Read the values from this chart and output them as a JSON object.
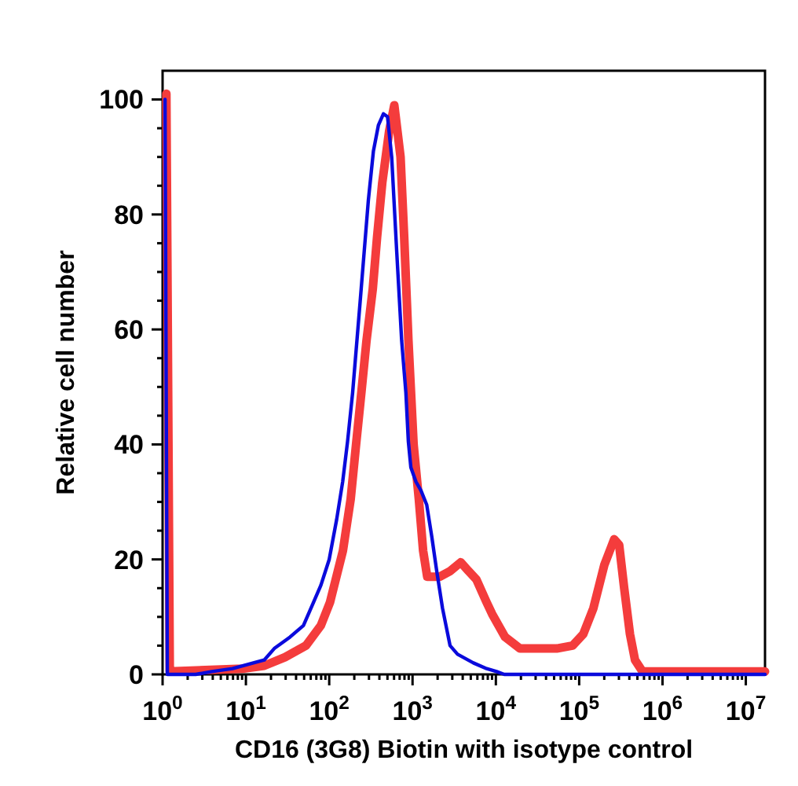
{
  "chart_data": {
    "type": "line",
    "xlabel": "CD16 (3G8) Biotin with isotype control",
    "ylabel": "Relative cell number",
    "log": "x",
    "xlim": [
      1,
      17000000
    ],
    "ylim": [
      0,
      105
    ],
    "xticks": [
      {
        "value": 1,
        "label": "10$^{0}$"
      },
      {
        "value": 2,
        "label": null
      },
      {
        "value": 3,
        "label": null
      },
      {
        "value": 4,
        "label": null
      },
      {
        "value": 5,
        "label": null
      },
      {
        "value": 6,
        "label": null
      },
      {
        "value": 7,
        "label": null
      },
      {
        "value": 8,
        "label": null
      },
      {
        "value": 9,
        "label": null
      },
      {
        "value": 10,
        "label": "10$^{1}$"
      },
      {
        "value": 20,
        "label": null
      },
      {
        "value": 30,
        "label": null
      },
      {
        "value": 40,
        "label": null
      },
      {
        "value": 50,
        "label": null
      },
      {
        "value": 60,
        "label": null
      },
      {
        "value": 70,
        "label": null
      },
      {
        "value": 80,
        "label": null
      },
      {
        "value": 90,
        "label": null
      },
      {
        "value": 100,
        "label": "10$^{2}$"
      },
      {
        "value": 200,
        "label": null
      },
      {
        "value": 300,
        "label": null
      },
      {
        "value": 400,
        "label": null
      },
      {
        "value": 500,
        "label": null
      },
      {
        "value": 600,
        "label": null
      },
      {
        "value": 700,
        "label": null
      },
      {
        "value": 800,
        "label": null
      },
      {
        "value": 900,
        "label": null
      },
      {
        "value": 1000,
        "label": "10$^{3}$"
      },
      {
        "value": 2000,
        "label": null
      },
      {
        "value": 3000,
        "label": null
      },
      {
        "value": 4000,
        "label": null
      },
      {
        "value": 5000,
        "label": null
      },
      {
        "value": 6000,
        "label": null
      },
      {
        "value": 7000,
        "label": null
      },
      {
        "value": 8000,
        "label": null
      },
      {
        "value": 9000,
        "label": null
      },
      {
        "value": 10000,
        "label": "10$^{4}$"
      },
      {
        "value": 20000,
        "label": null
      },
      {
        "value": 30000,
        "label": null
      },
      {
        "value": 40000,
        "label": null
      },
      {
        "value": 50000,
        "label": null
      },
      {
        "value": 60000,
        "label": null
      },
      {
        "value": 70000,
        "label": null
      },
      {
        "value": 80000,
        "label": null
      },
      {
        "value": 90000,
        "label": null
      },
      {
        "value": 100000,
        "label": "10$^{5}$"
      },
      {
        "value": 200000,
        "label": null
      },
      {
        "value": 300000,
        "label": null
      },
      {
        "value": 400000,
        "label": null
      },
      {
        "value": 500000,
        "label": null
      },
      {
        "value": 600000,
        "label": null
      },
      {
        "value": 700000,
        "label": null
      },
      {
        "value": 800000,
        "label": null
      },
      {
        "value": 900000,
        "label": null
      },
      {
        "value": 1000000,
        "label": "10$^{6}$"
      },
      {
        "value": 2000000,
        "label": null
      },
      {
        "value": 3000000,
        "label": null
      },
      {
        "value": 4000000,
        "label": null
      },
      {
        "value": 5000000,
        "label": null
      },
      {
        "value": 6000000,
        "label": null
      },
      {
        "value": 7000000,
        "label": null
      },
      {
        "value": 8000000,
        "label": null
      },
      {
        "value": 9000000,
        "label": null
      },
      {
        "value": 10000000,
        "label": "10$^{7}$"
      }
    ],
    "yticks": [
      0,
      {
        "value": 5,
        "label": null
      },
      {
        "value": 10,
        "label": null
      },
      {
        "value": 15,
        "label": null
      },
      20,
      {
        "value": 25,
        "label": null
      },
      {
        "value": 30,
        "label": null
      },
      {
        "value": 35,
        "label": null
      },
      40,
      {
        "value": 45,
        "label": null
      },
      {
        "value": 50,
        "label": null
      },
      {
        "value": 55,
        "label": null
      },
      60,
      {
        "value": 65,
        "label": null
      },
      {
        "value": 70,
        "label": null
      },
      {
        "value": 75,
        "label": null
      },
      80,
      {
        "value": 85,
        "label": null
      },
      {
        "value": 90,
        "label": null
      },
      {
        "value": 95,
        "label": null
      },
      100
    ],
    "series": [
      {
        "color": "#f43c3c",
        "x": [
          1.11,
          1.22,
          9.1,
          16.6,
          29.5,
          52.5,
          79.4,
          102,
          146,
          181,
          210,
          243,
          280,
          333,
          375,
          433,
          524,
          604,
          718,
          794,
          893,
          1030,
          1190,
          1340,
          1500,
          2130,
          2850,
          3790,
          4680,
          5840,
          7760,
          9020,
          12900,
          19500,
          30200,
          53700,
          83200,
          112000,
          148000,
          200000,
          263000,
          302000,
          347000,
          407000,
          468000,
          575000,
          17000000
        ],
        "values": [
          101,
          0.5,
          1,
          1.5,
          3,
          5,
          8.5,
          12.5,
          21.5,
          30.5,
          40,
          49,
          58,
          67,
          76,
          85.5,
          94.5,
          99,
          90,
          76,
          58,
          40,
          30.5,
          21.5,
          17,
          17,
          18,
          19.5,
          18,
          16.5,
          12.5,
          10.5,
          6.5,
          4.5,
          4.5,
          4.5,
          5,
          7,
          11.5,
          19,
          23.5,
          22.5,
          15,
          7,
          2.5,
          0.5,
          0.5
        ]
      },
      {
        "color": "#0a0adc",
        "x": [
          1.07,
          1.14,
          2.5,
          3.9,
          6.9,
          12.3,
          16.6,
          21.9,
          33.9,
          49,
          64.6,
          79.4,
          100,
          123,
          145,
          166,
          191,
          234,
          295,
          339,
          389,
          447,
          501,
          562,
          646,
          741,
          832,
          891,
          955,
          1100,
          1260,
          1480,
          1700,
          1950,
          2290,
          2820,
          3470,
          5370,
          7760,
          10200,
          12600,
          17000000
        ],
        "values": [
          100,
          0,
          0,
          0.5,
          1,
          2,
          2.5,
          4.5,
          6.5,
          8.5,
          12.5,
          15.5,
          20,
          27,
          33.5,
          40.5,
          49,
          64.5,
          82.5,
          91,
          95.5,
          97.5,
          97,
          90,
          73.5,
          58,
          49,
          40.5,
          36,
          33.5,
          32,
          29.5,
          24,
          18,
          11.5,
          5,
          3.5,
          2,
          1,
          0.5,
          0,
          0
        ]
      }
    ]
  }
}
